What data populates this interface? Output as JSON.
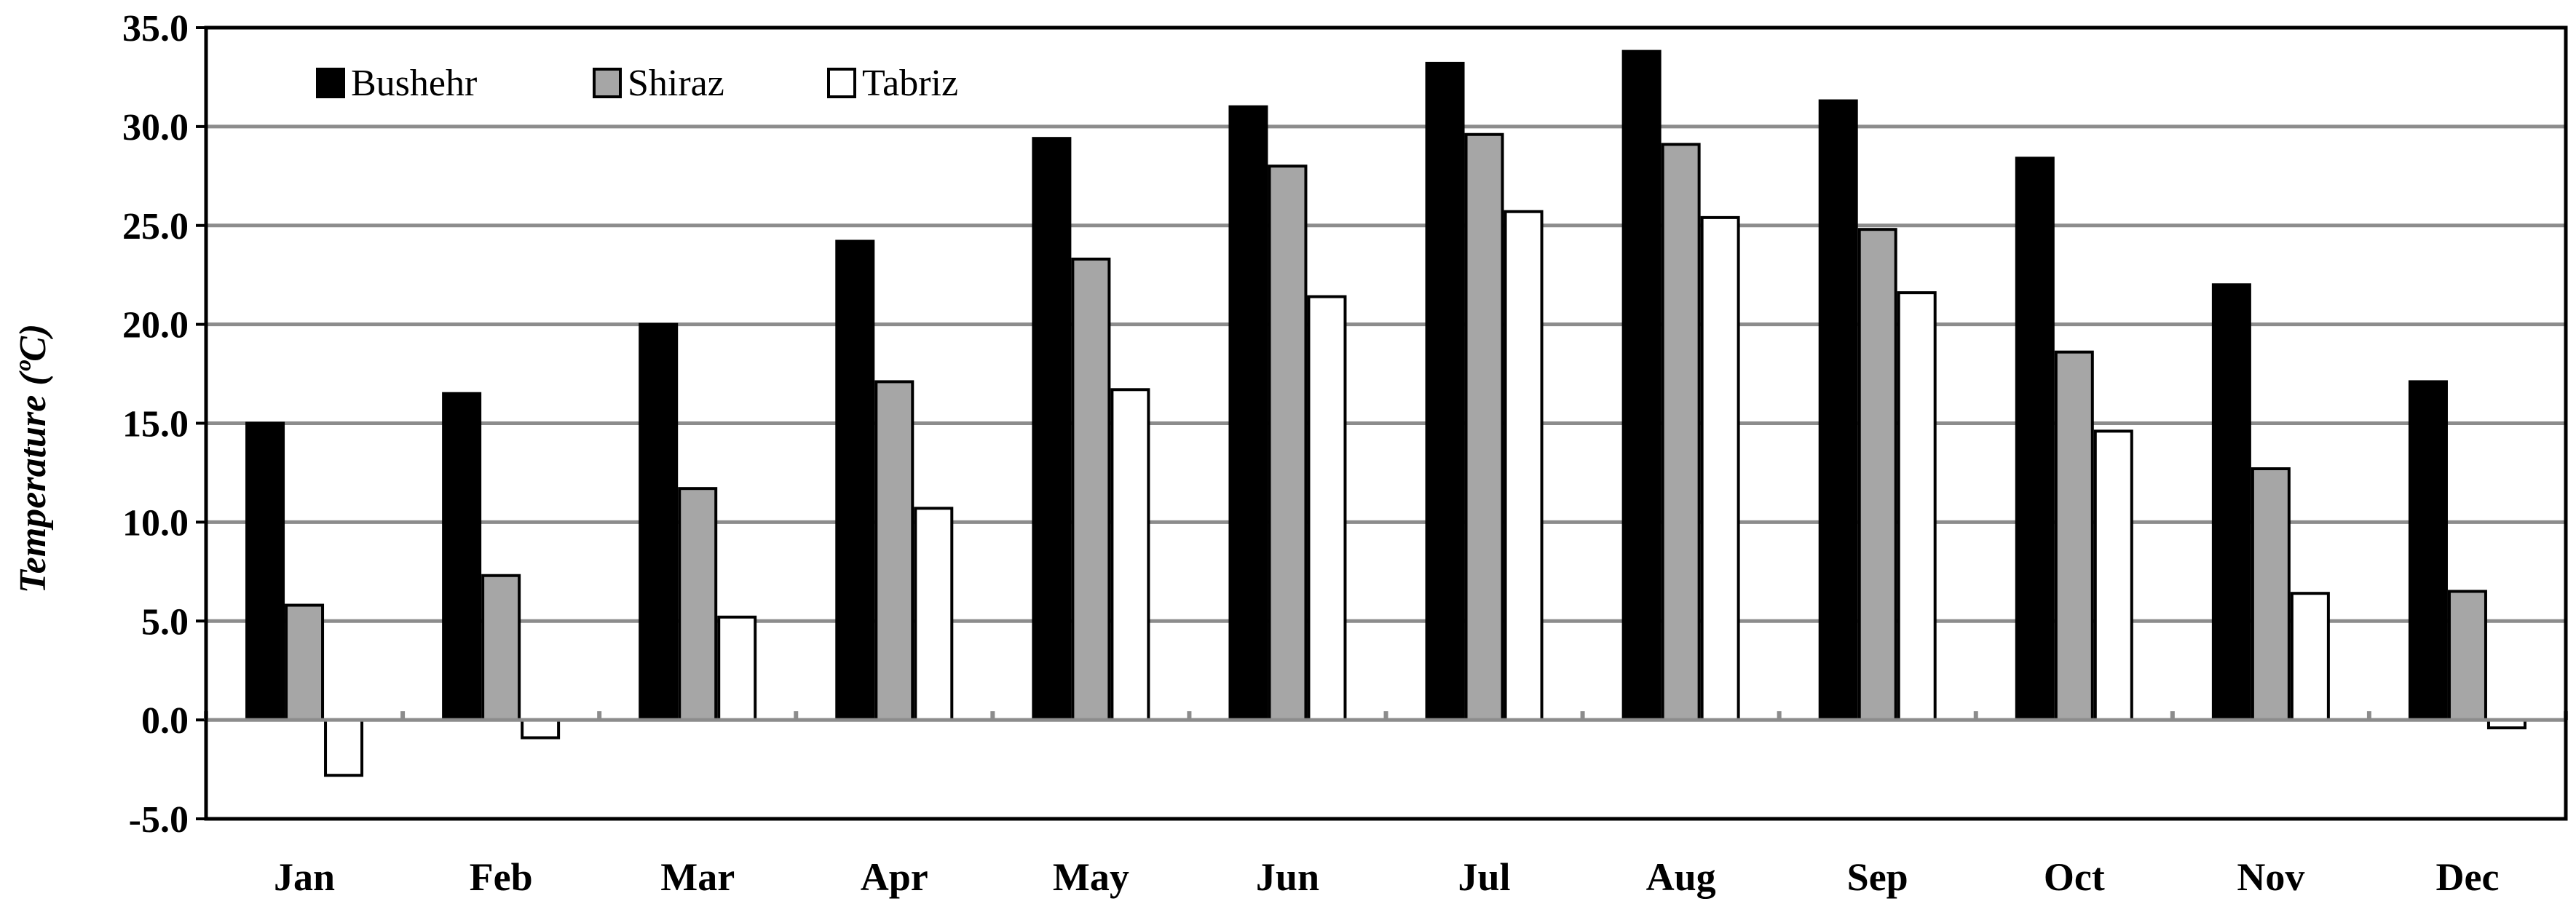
{
  "chart_data": {
    "type": "bar",
    "ylabel": "Temperature (ºC)",
    "ylim": [
      -5,
      35
    ],
    "ytick_step": 5,
    "ytick_labels": [
      "-5.0",
      "0.0",
      "5.0",
      "10.0",
      "15.0",
      "20.0",
      "25.0",
      "30.0",
      "35.0"
    ],
    "grid": true,
    "legend_position": "top-left",
    "categories": [
      "Jan",
      "Feb",
      "Mar",
      "Apr",
      "May",
      "Jun",
      "Jul",
      "Aug",
      "Sep",
      "Oct",
      "Nov",
      "Dec"
    ],
    "series": [
      {
        "name": "Bushehr",
        "color": "#000000",
        "values": [
          15.0,
          16.5,
          20.0,
          24.2,
          29.4,
          31.0,
          33.2,
          33.8,
          31.3,
          28.4,
          22.0,
          17.1
        ]
      },
      {
        "name": "Shiraz",
        "color": "#a6a6a6",
        "values": [
          5.8,
          7.3,
          11.7,
          17.1,
          23.3,
          28.0,
          29.6,
          29.1,
          24.8,
          18.6,
          12.7,
          6.5
        ]
      },
      {
        "name": "Tabriz",
        "color": "#ffffff",
        "values": [
          -2.8,
          -0.9,
          5.2,
          10.7,
          16.7,
          21.4,
          25.7,
          25.4,
          21.6,
          14.6,
          6.4,
          -0.4
        ]
      }
    ]
  }
}
